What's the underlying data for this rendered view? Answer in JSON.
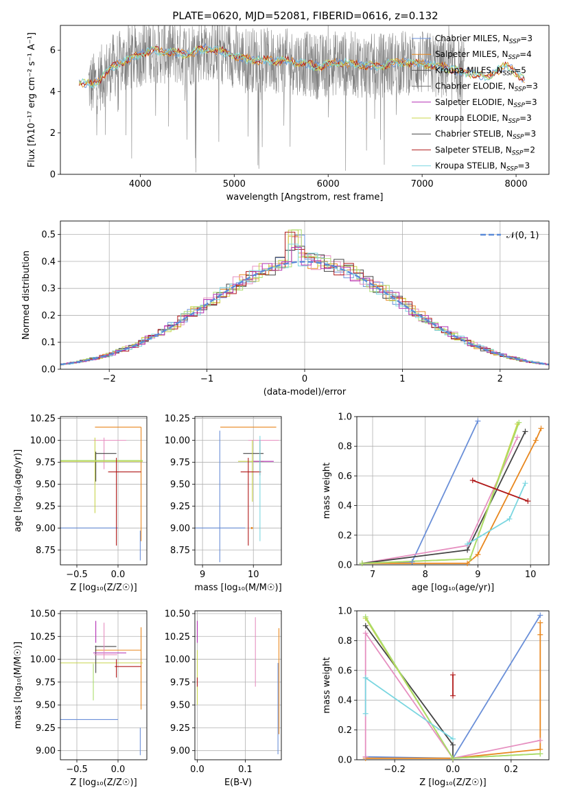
{
  "figure": {
    "title": "PLATE=0620, MJD=52081, FIBERID=0616, z=0.132"
  },
  "colors": {
    "Chabrier MILES": "#6a8fd8",
    "Salpeter MILES": "#e8871e",
    "Kroupa MILES": "#555555",
    "Chabrier ELODIE": "#6f6f6f",
    "Salpeter ELODIE": "#b22cb2",
    "Kroupa ELODIE": "#c8d44a",
    "Chabrier STELIB": "#444444",
    "Salpeter STELIB": "#b01818",
    "Kroupa STELIB": "#7ad6e0",
    "pink": "#e68fc0",
    "lime": "#a8dc6c",
    "spectrum": "#808080"
  },
  "chart_data": [
    {
      "id": "spectrum",
      "type": "line",
      "xlabel": "wavelength [Angstrom, rest frame]",
      "ylabel": "Flux [fλ10⁻¹⁷ erg cm⁻² s⁻¹ A⁻¹]",
      "xlim": [
        3150,
        8350
      ],
      "ylim": [
        0,
        7.2
      ],
      "xticks": [
        4000,
        5000,
        6000,
        7000,
        8000
      ],
      "yticks": [
        0,
        2,
        4,
        6
      ],
      "legend_position": "right",
      "legend": [
        "Chabrier MILES, N_SSP=3",
        "Salpeter MILES, N_SSP=4",
        "Kroupa MILES, N_SSP=5",
        "Chabrier ELODIE, N_SSP=3",
        "Salpeter ELODIE, N_SSP=3",
        "Kroupa ELODIE, N_SSP=3",
        "Chabrier STELIB, N_SSP=3",
        "Salpeter STELIB, N_SSP=2",
        "Kroupa STELIB, N_SSP=3"
      ],
      "model_continuum": {
        "x": [
          3350,
          3500,
          3700,
          3900,
          4100,
          4300,
          4500,
          4700,
          4900,
          5100,
          5300,
          5500,
          5700,
          5900,
          6100,
          6300,
          6500,
          6700,
          6900,
          7100,
          7300,
          7500,
          7700,
          7900,
          8100
        ],
        "y": [
          4.5,
          4.3,
          5.2,
          5.6,
          6.0,
          5.9,
          5.8,
          6.1,
          5.9,
          5.6,
          5.5,
          5.5,
          5.4,
          5.2,
          5.4,
          5.3,
          5.2,
          5.4,
          5.4,
          5.3,
          5.1,
          4.9,
          4.7,
          5.3,
          4.5
        ]
      },
      "observed_range": [
        3450,
        7450
      ]
    },
    {
      "id": "residuals",
      "type": "line",
      "xlabel": "(data-model)/error",
      "ylabel": "Normed distribution",
      "xlim": [
        -2.5,
        2.5
      ],
      "ylim": [
        0,
        0.55
      ],
      "xticks": [
        -2,
        -1,
        0,
        1,
        2
      ],
      "yticks": [
        0.0,
        0.1,
        0.2,
        0.3,
        0.4,
        0.5
      ],
      "legend_position": "top-right",
      "legend": [
        "𝒩(0, 1)"
      ],
      "gaussian": {
        "mean": 0,
        "sigma": 1
      },
      "grid": true
    },
    {
      "id": "age_vs_Z",
      "type": "scatter",
      "xlabel": "Z [log₁₀(Z/Z☉)]",
      "ylabel": "age  [log₁₀(age/yr)]",
      "xlim": [
        -0.7,
        0.35
      ],
      "ylim": [
        8.58,
        10.27
      ],
      "xticks": [
        -0.5,
        0.0
      ],
      "yticks": [
        8.75,
        9.0,
        9.25,
        9.5,
        9.75,
        10.0,
        10.25
      ],
      "grid": true,
      "points": [
        {
          "model": "Chabrier MILES",
          "x": -0.5,
          "xerr": 0.5,
          "y": 9.0,
          "yerr": 0.0
        },
        {
          "model": "Chabrier MILES",
          "x": 0.27,
          "xerr": 0.0,
          "y": 8.8,
          "yerr": 0.17
        },
        {
          "model": "Salpeter MILES",
          "x": 0.0,
          "xerr": 0.28,
          "y": 10.15,
          "yerr": 0.0
        },
        {
          "model": "Salpeter MILES",
          "x": 0.28,
          "xerr": 0.0,
          "y": 9.5,
          "yerr": 0.65
        },
        {
          "model": "pink",
          "x": -0.1,
          "xerr": 0.2,
          "y": 10.0,
          "yerr": 0.0
        },
        {
          "model": "pink",
          "x": -0.17,
          "xerr": 0.0,
          "y": 9.85,
          "yerr": 0.18
        },
        {
          "model": "Chabrier STELIB",
          "x": -0.15,
          "xerr": 0.13,
          "y": 9.85,
          "yerr": 0.0
        },
        {
          "model": "Chabrier STELIB",
          "x": -0.27,
          "xerr": 0.0,
          "y": 9.7,
          "yerr": 0.17
        },
        {
          "model": "Kroupa ELODIE",
          "x": -0.3,
          "xerr": 0.6,
          "y": 9.76,
          "yerr": 0.0
        },
        {
          "model": "Kroupa ELODIE",
          "x": -0.28,
          "xerr": 0.0,
          "y": 9.6,
          "yerr": 0.43
        },
        {
          "model": "lime",
          "x": -0.3,
          "xerr": 0.6,
          "y": 9.77,
          "yerr": 0.0
        },
        {
          "model": "Salpeter STELIB",
          "x": 0.08,
          "xerr": 0.2,
          "y": 9.64,
          "yerr": 0.0
        },
        {
          "model": "Salpeter STELIB",
          "x": -0.02,
          "xerr": 0.0,
          "y": 9.3,
          "yerr": 0.5
        }
      ]
    },
    {
      "id": "age_vs_mass",
      "type": "scatter",
      "xlabel": "mass [log₁₀(M/M☉)]",
      "ylabel": "",
      "xlim": [
        8.85,
        10.55
      ],
      "ylim": [
        8.58,
        10.27
      ],
      "xticks": [
        9,
        10
      ],
      "yticks": [
        8.75,
        9.0,
        9.25,
        9.5,
        9.75,
        10.0,
        10.25
      ],
      "grid": true,
      "points": [
        {
          "model": "Chabrier MILES",
          "x": 9.34,
          "xerr": 0.5,
          "y": 9.0,
          "yerr": 0.0
        },
        {
          "model": "Chabrier MILES",
          "x": 9.34,
          "xerr": 0.0,
          "y": 9.36,
          "yerr": 0.75
        },
        {
          "model": "Salpeter MILES",
          "x": 9.9,
          "xerr": 0.55,
          "y": 10.15,
          "yerr": 0.0
        },
        {
          "model": "Salpeter MILES",
          "x": 9.97,
          "xerr": 0.0,
          "y": 9.0,
          "yerr": 0.0
        },
        {
          "model": "pink",
          "x": 10.2,
          "xerr": 0.3,
          "y": 10.0,
          "yerr": 0.0
        },
        {
          "model": "Chabrier STELIB",
          "x": 10.0,
          "xerr": 0.2,
          "y": 9.85,
          "yerr": 0.0
        },
        {
          "model": "Chabrier STELIB",
          "x": 10.13,
          "xerr": 0.0,
          "y": 9.8,
          "yerr": 0.2
        },
        {
          "model": "Kroupa ELODIE",
          "x": 9.95,
          "xerr": 0.25,
          "y": 9.76,
          "yerr": 0.0
        },
        {
          "model": "Kroupa ELODIE",
          "x": 9.98,
          "xerr": 0.0,
          "y": 9.65,
          "yerr": 0.35
        },
        {
          "model": "Salpeter ELODIE",
          "x": 10.2,
          "xerr": 0.2,
          "y": 9.76,
          "yerr": 0.0
        },
        {
          "model": "Salpeter STELIB",
          "x": 9.95,
          "xerr": 0.2,
          "y": 9.64,
          "yerr": 0.0
        },
        {
          "model": "Salpeter STELIB",
          "x": 9.9,
          "xerr": 0.0,
          "y": 9.3,
          "yerr": 0.5
        },
        {
          "model": "Kroupa STELIB",
          "x": 10.13,
          "xerr": 0.0,
          "y": 9.45,
          "yerr": 0.6
        }
      ]
    },
    {
      "id": "mass_weight_vs_age",
      "type": "line",
      "xlabel": "age  [log₁₀(age/yr)]",
      "ylabel": "mass weight",
      "xlim": [
        6.7,
        10.35
      ],
      "ylim": [
        0.0,
        1.0
      ],
      "xticks": [
        7,
        8,
        9,
        10
      ],
      "yticks": [
        0.0,
        0.2,
        0.4,
        0.6,
        0.8,
        1.0
      ],
      "grid": true,
      "series": [
        {
          "model": "Chabrier MILES",
          "x": [
            6.8,
            7.75,
            9.0
          ],
          "y": [
            0.01,
            0.02,
            0.97
          ]
        },
        {
          "model": "Salpeter MILES",
          "x": [
            6.8,
            8.8,
            9.0,
            10.1,
            10.2
          ],
          "y": [
            0.01,
            0.01,
            0.07,
            0.84,
            0.92
          ]
        },
        {
          "model": "pink",
          "x": [
            6.8,
            8.8,
            9.75
          ],
          "y": [
            0.01,
            0.13,
            0.86
          ]
        },
        {
          "model": "Chabrier STELIB",
          "x": [
            6.8,
            8.8,
            9.9
          ],
          "y": [
            0.01,
            0.1,
            0.9
          ]
        },
        {
          "model": "Kroupa ELODIE",
          "x": [
            6.8,
            8.85,
            9.75
          ],
          "y": [
            0.01,
            0.04,
            0.95
          ]
        },
        {
          "model": "lime",
          "x": [
            6.8,
            8.85,
            9.78
          ],
          "y": [
            0.01,
            0.04,
            0.96
          ]
        },
        {
          "model": "Kroupa STELIB",
          "x": [
            8.8,
            9.6,
            9.9
          ],
          "y": [
            0.14,
            0.31,
            0.55
          ]
        },
        {
          "model": "Salpeter STELIB",
          "x": [
            8.9,
            9.95
          ],
          "y": [
            0.57,
            0.43
          ]
        }
      ]
    },
    {
      "id": "mass_vs_Z",
      "type": "scatter",
      "xlabel": "Z [log₁₀(Z/Z☉)]",
      "ylabel": "mass [log₁₀(M/M☉)]",
      "xlim": [
        -0.7,
        0.35
      ],
      "ylim": [
        8.9,
        10.53
      ],
      "xticks": [
        -0.5,
        0.0
      ],
      "yticks": [
        9.0,
        9.25,
        9.5,
        9.75,
        10.0,
        10.25,
        10.5
      ],
      "grid": true,
      "points": [
        {
          "model": "Chabrier MILES",
          "x": -0.5,
          "xerr": 0.5,
          "y": 9.34,
          "yerr": 0.0
        },
        {
          "model": "Chabrier MILES",
          "x": 0.27,
          "xerr": 0.0,
          "y": 9.1,
          "yerr": 0.15
        },
        {
          "model": "Salpeter MILES",
          "x": 0.0,
          "xerr": 0.28,
          "y": 10.1,
          "yerr": 0.0
        },
        {
          "model": "Salpeter MILES",
          "x": 0.28,
          "xerr": 0.0,
          "y": 9.9,
          "yerr": 0.45
        },
        {
          "model": "Kroupa ELODIE",
          "x": -0.3,
          "xerr": 0.6,
          "y": 9.96,
          "yerr": 0.0
        },
        {
          "model": "Chabrier STELIB",
          "x": -0.15,
          "xerr": 0.13,
          "y": 10.14,
          "yerr": 0.0
        },
        {
          "model": "Chabrier STELIB",
          "x": -0.27,
          "xerr": 0.0,
          "y": 10.0,
          "yerr": 0.15
        },
        {
          "model": "Salpeter ELODIE",
          "x": -0.1,
          "xerr": 0.2,
          "y": 10.07,
          "yerr": 0.0
        },
        {
          "model": "Salpeter ELODIE",
          "x": -0.27,
          "xerr": 0.0,
          "y": 10.3,
          "yerr": 0.12
        },
        {
          "model": "pink",
          "x": -0.15,
          "xerr": 0.14,
          "y": 10.05,
          "yerr": 0.0
        },
        {
          "model": "pink",
          "x": -0.17,
          "xerr": 0.0,
          "y": 10.2,
          "yerr": 0.2
        },
        {
          "model": "lime",
          "x": -0.3,
          "xerr": 0.0,
          "y": 9.75,
          "yerr": 0.2
        },
        {
          "model": "Salpeter STELIB",
          "x": 0.12,
          "xerr": 0.16,
          "y": 9.92,
          "yerr": 0.0
        },
        {
          "model": "Salpeter STELIB",
          "x": -0.02,
          "xerr": 0.0,
          "y": 9.9,
          "yerr": 0.1
        }
      ]
    },
    {
      "id": "mass_vs_ebv",
      "type": "scatter",
      "xlabel": "E(B-V)",
      "ylabel": "",
      "xlim": [
        -0.005,
        0.175
      ],
      "ylim": [
        8.9,
        10.53
      ],
      "xticks": [
        0.0,
        0.1
      ],
      "yticks": [
        9.0,
        9.25,
        9.5,
        9.75,
        10.0,
        10.25,
        10.5
      ],
      "grid": true,
      "points": [
        {
          "model": "Salpeter ELODIE",
          "x": 0.0,
          "xerr": 0.0,
          "y": 10.3,
          "yerr": 0.12
        },
        {
          "model": "Kroupa ELODIE",
          "x": 0.0,
          "xerr": 0.0,
          "y": 9.8,
          "yerr": 0.3
        },
        {
          "model": "Salpeter STELIB",
          "x": 0.0,
          "xerr": 0.0,
          "y": 9.75,
          "yerr": 0.05
        },
        {
          "model": "pink",
          "x": 0.121,
          "xerr": 0.0,
          "y": 10.08,
          "yerr": 0.38
        },
        {
          "model": "Chabrier MILES",
          "x": 0.168,
          "xerr": 0.0,
          "y": 9.46,
          "yerr": 0.5
        },
        {
          "model": "Salpeter MILES",
          "x": 0.17,
          "xerr": 0.0,
          "y": 9.76,
          "yerr": 0.58
        }
      ]
    },
    {
      "id": "mass_weight_vs_Z",
      "type": "line",
      "xlabel": "Z [log₁₀(Z/Z☉)]",
      "ylabel": "mass weight",
      "xlim": [
        -0.33,
        0.33
      ],
      "ylim": [
        0.0,
        1.0
      ],
      "xticks": [
        -0.2,
        0.0,
        0.2
      ],
      "yticks": [
        0.0,
        0.2,
        0.4,
        0.6,
        0.8,
        1.0
      ],
      "grid": true,
      "series": [
        {
          "model": "Chabrier MILES",
          "x": [
            -0.3,
            0.0,
            0.3
          ],
          "y": [
            0.02,
            0.01,
            0.97
          ]
        },
        {
          "model": "Salpeter MILES",
          "x": [
            -0.3,
            0.0,
            0.3,
            0.3,
            0.3
          ],
          "y": [
            0.01,
            0.01,
            0.07,
            0.84,
            0.92
          ]
        },
        {
          "model": "pink",
          "x": [
            -0.3,
            -0.3,
            0.0,
            0.3
          ],
          "y": [
            0.02,
            0.85,
            0.01,
            0.13
          ]
        },
        {
          "model": "Chabrier STELIB",
          "x": [
            -0.3,
            0.0,
            0.0
          ],
          "y": [
            0.9,
            0.1,
            0.01
          ]
        },
        {
          "model": "Kroupa ELODIE",
          "x": [
            -0.3,
            0.0,
            0.3
          ],
          "y": [
            0.95,
            0.01,
            0.04
          ]
        },
        {
          "model": "lime",
          "x": [
            -0.3,
            0.0,
            0.3
          ],
          "y": [
            0.96,
            0.01,
            0.04
          ]
        },
        {
          "model": "Kroupa STELIB",
          "x": [
            -0.3,
            -0.3,
            0.0
          ],
          "y": [
            0.31,
            0.55,
            0.14
          ]
        },
        {
          "model": "Salpeter STELIB",
          "x": [
            0.0,
            0.0
          ],
          "y": [
            0.43,
            0.57
          ]
        }
      ]
    }
  ]
}
